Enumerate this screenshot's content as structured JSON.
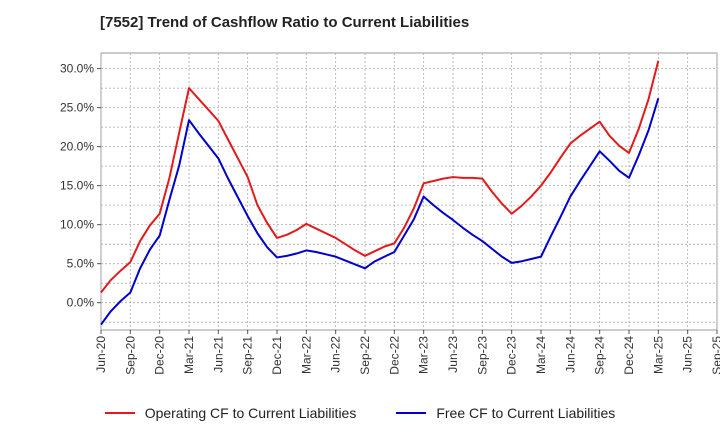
{
  "chart_data": {
    "type": "line",
    "title": "[7552]  Trend of Cashflow Ratio to Current Liabilities",
    "xlabel": "",
    "ylabel": "",
    "x_tick_labels": [
      "Jun-20",
      "Sep-20",
      "Dec-20",
      "Mar-21",
      "Jun-21",
      "Sep-21",
      "Dec-21",
      "Mar-22",
      "Jun-22",
      "Sep-22",
      "Dec-22",
      "Mar-23",
      "Jun-23",
      "Sep-23",
      "Dec-23",
      "Mar-24",
      "Jun-24",
      "Sep-24",
      "Dec-24",
      "Mar-25",
      "Jun-25",
      "Sep-25"
    ],
    "x_months": [
      "2020-06",
      "2020-07",
      "2020-08",
      "2020-09",
      "2020-10",
      "2020-11",
      "2020-12",
      "2021-01",
      "2021-02",
      "2021-03",
      "2021-04",
      "2021-05",
      "2021-06",
      "2021-07",
      "2021-08",
      "2021-09",
      "2021-10",
      "2021-11",
      "2021-12",
      "2022-01",
      "2022-02",
      "2022-03",
      "2022-04",
      "2022-05",
      "2022-06",
      "2022-07",
      "2022-08",
      "2022-09",
      "2022-10",
      "2022-11",
      "2022-12",
      "2023-01",
      "2023-02",
      "2023-03",
      "2023-04",
      "2023-05",
      "2023-06",
      "2023-07",
      "2023-08",
      "2023-09",
      "2023-10",
      "2023-11",
      "2023-12",
      "2024-01",
      "2024-02",
      "2024-03",
      "2024-04",
      "2024-05",
      "2024-06",
      "2024-07",
      "2024-08",
      "2024-09",
      "2024-10",
      "2024-11",
      "2024-12",
      "2025-01",
      "2025-02",
      "2025-03"
    ],
    "y_tick_labels": [
      "0.0%",
      "5.0%",
      "10.0%",
      "15.0%",
      "20.0%",
      "25.0%",
      "30.0%"
    ],
    "ylim": [
      -3.5,
      32.0
    ],
    "grid": true,
    "legend_position": "bottom",
    "series": [
      {
        "name": "Operating CF to Current Liabilities",
        "color": "#e31a1c",
        "values": [
          1.3,
          2.9,
          4.1,
          5.2,
          7.9,
          9.9,
          11.4,
          16.0,
          21.8,
          27.5,
          26.1,
          24.7,
          23.3,
          20.9,
          18.5,
          16.1,
          12.5,
          10.2,
          8.3,
          8.7,
          9.3,
          10.1,
          9.5,
          8.9,
          8.3,
          7.5,
          6.7,
          6.0,
          6.6,
          7.2,
          7.6,
          9.6,
          12.1,
          15.3,
          15.6,
          15.9,
          16.1,
          16.0,
          16.0,
          15.9,
          14.2,
          12.7,
          11.4,
          12.4,
          13.6,
          15.0,
          16.7,
          18.6,
          20.4,
          21.4,
          22.3,
          23.2,
          21.4,
          20.1,
          19.2,
          22.3,
          26.1,
          31.0
        ]
      },
      {
        "name": "Free CF to Current Liabilities",
        "color": "#0000cc",
        "values": [
          -2.8,
          -1.1,
          0.2,
          1.3,
          4.4,
          6.8,
          8.6,
          13.2,
          17.6,
          23.4,
          21.7,
          20.1,
          18.5,
          15.9,
          13.5,
          11.1,
          8.9,
          7.1,
          5.8,
          6.0,
          6.3,
          6.7,
          6.5,
          6.2,
          5.9,
          5.4,
          4.9,
          4.4,
          5.3,
          5.9,
          6.5,
          8.6,
          10.7,
          13.6,
          12.5,
          11.5,
          10.6,
          9.6,
          8.7,
          7.9,
          6.9,
          5.9,
          5.1,
          5.3,
          5.6,
          5.9,
          8.5,
          11.0,
          13.6,
          15.6,
          17.5,
          19.4,
          18.2,
          16.9,
          16.0,
          18.9,
          22.1,
          26.2
        ]
      }
    ]
  }
}
